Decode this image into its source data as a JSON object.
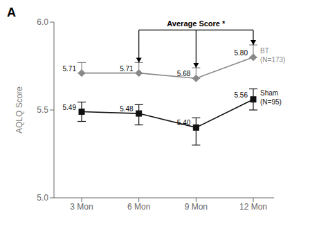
{
  "chart_data": {
    "type": "line",
    "title": "A",
    "y_label": "AQLQ Score",
    "categories": [
      "3 Mon",
      "6 Mon",
      "9 Mon",
      "12 Mon"
    ],
    "series": [
      {
        "name": "BT\n(N=173)",
        "color": "#888888",
        "marker": "diamond",
        "line_style": "solid",
        "values": [
          5.71,
          5.71,
          5.68,
          5.8
        ],
        "value_labels": [
          "5.71",
          "5.71",
          "5.68",
          "5.80"
        ],
        "errors_up": [
          0.06,
          0.06,
          0.06,
          0.07
        ],
        "errors_down": [
          0.0,
          0.0,
          0.0,
          0.0
        ]
      },
      {
        "name": "Sham\n(N=95)",
        "color": "#111111",
        "marker": "square",
        "line_style": "solid",
        "values": [
          5.49,
          5.48,
          5.4,
          5.56
        ],
        "value_labels": [
          "5.49",
          "5.48",
          "5.40",
          "5.56"
        ],
        "errors_up": [
          0.055,
          0.05,
          0.055,
          0.06
        ],
        "errors_down": [
          0.055,
          0.065,
          0.1,
          0.06
        ]
      }
    ],
    "ylim": [
      5.0,
      6.0
    ],
    "yticks": [
      {
        "value": 5.0,
        "label": "5.0"
      },
      5.5,
      {
        "value": 6.0,
        "label": "6.0"
      }
    ],
    "data_labels": true,
    "grid": false,
    "annotations": [
      {
        "text": "Average Score *",
        "y": 5.955,
        "x": [
          "6 Mon",
          "9 Mon",
          "12 Mon"
        ]
      }
    ]
  }
}
